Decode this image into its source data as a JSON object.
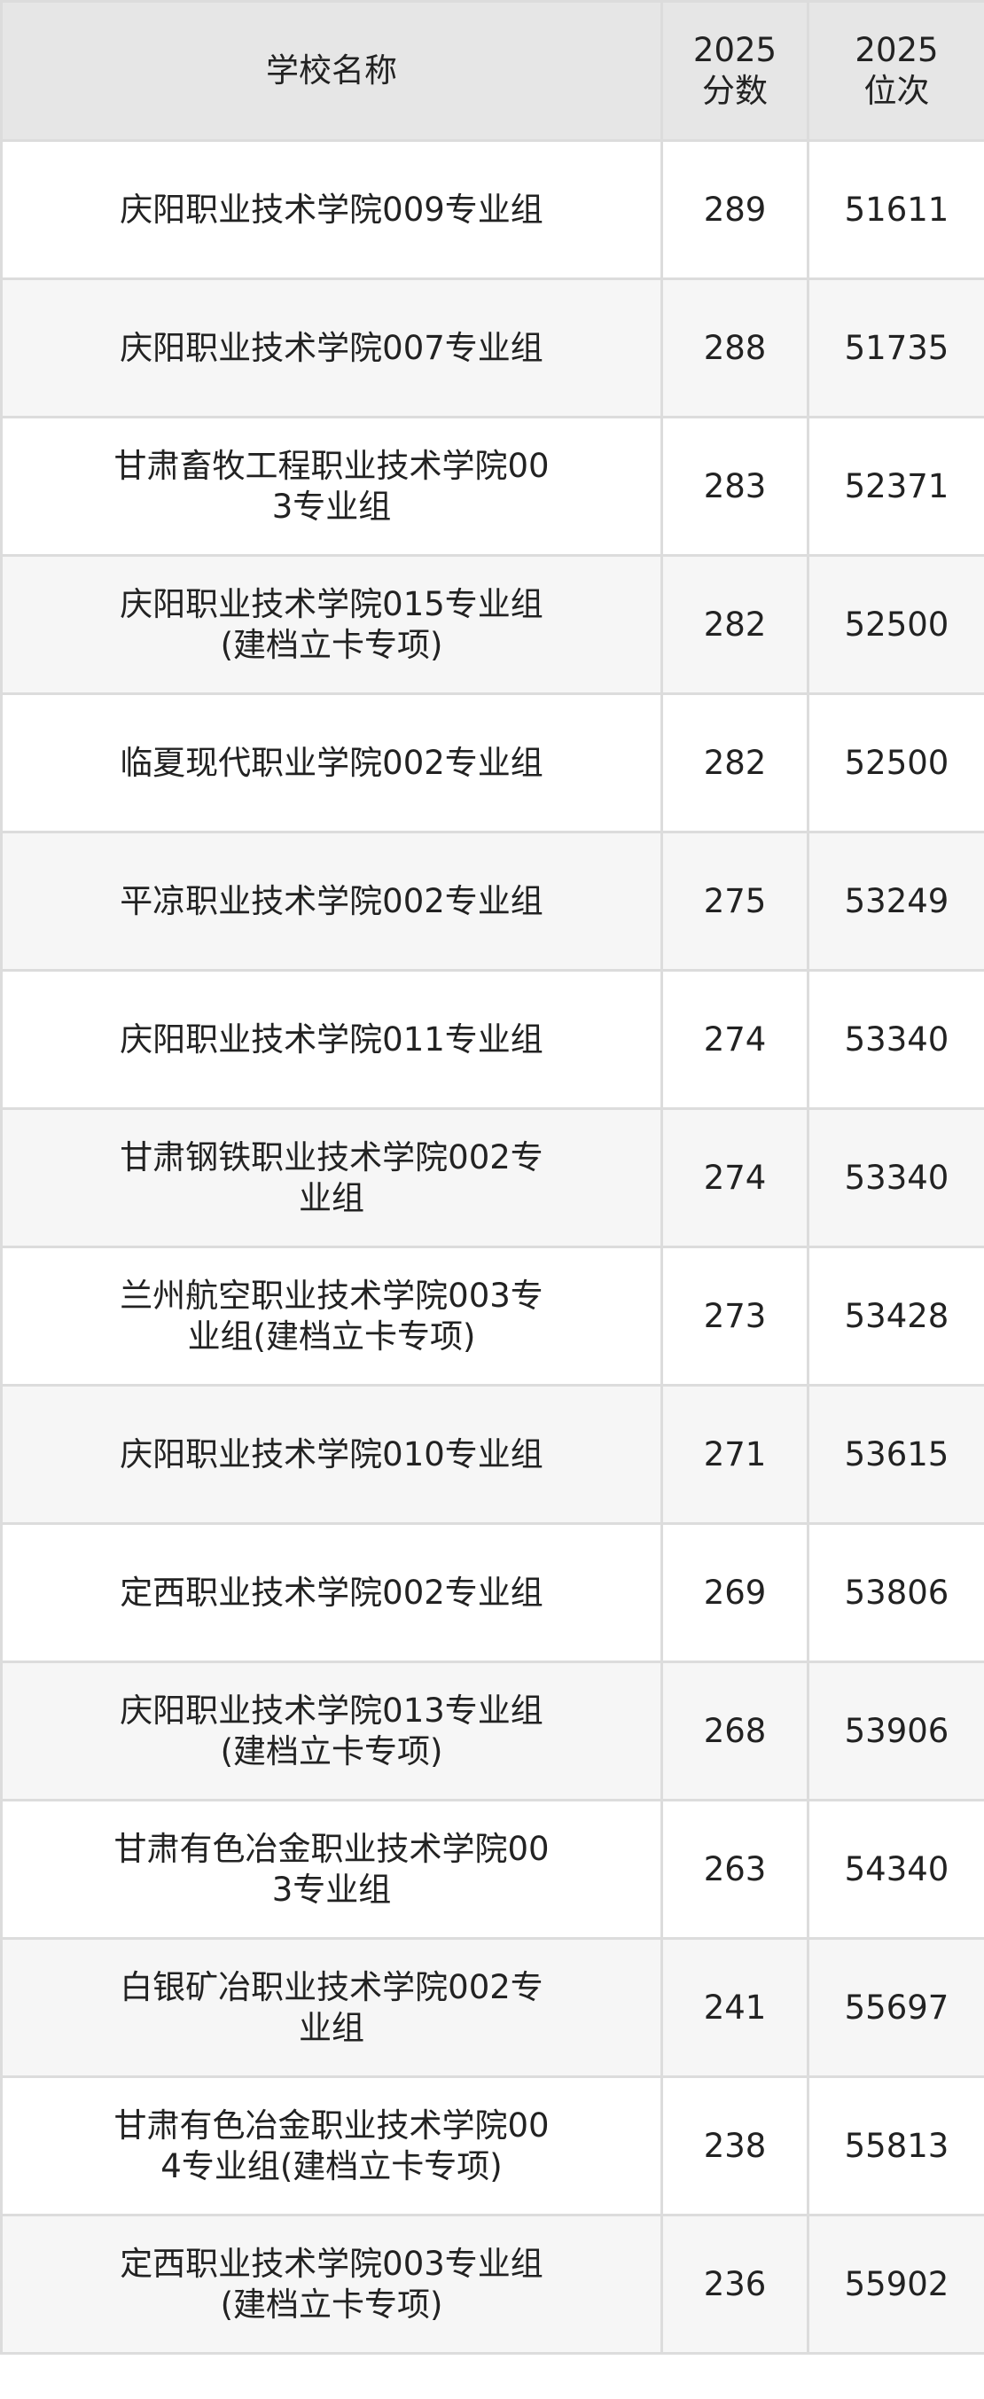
{
  "header": {
    "name": "学校名称",
    "score_year": "2025",
    "score_label": "分数",
    "rank_year": "2025",
    "rank_label": "位次"
  },
  "rows": [
    {
      "name": "庆阳职业技术学院009专业组",
      "score": "289",
      "rank": "51611"
    },
    {
      "name": "庆阳职业技术学院007专业组",
      "score": "288",
      "rank": "51735"
    },
    {
      "name": "甘肃畜牧工程职业技术学院003专业组",
      "score": "283",
      "rank": "52371"
    },
    {
      "name": "庆阳职业技术学院015专业组(建档立卡专项)",
      "score": "282",
      "rank": "52500"
    },
    {
      "name": "临夏现代职业学院002专业组",
      "score": "282",
      "rank": "52500"
    },
    {
      "name": "平凉职业技术学院002专业组",
      "score": "275",
      "rank": "53249"
    },
    {
      "name": "庆阳职业技术学院011专业组",
      "score": "274",
      "rank": "53340"
    },
    {
      "name": "甘肃钢铁职业技术学院002专业组",
      "score": "274",
      "rank": "53340"
    },
    {
      "name": "兰州航空职业技术学院003专业组(建档立卡专项)",
      "score": "273",
      "rank": "53428"
    },
    {
      "name": "庆阳职业技术学院010专业组",
      "score": "271",
      "rank": "53615"
    },
    {
      "name": "定西职业技术学院002专业组",
      "score": "269",
      "rank": "53806"
    },
    {
      "name": "庆阳职业技术学院013专业组(建档立卡专项)",
      "score": "268",
      "rank": "53906"
    },
    {
      "name": "甘肃有色冶金职业技术学院003专业组",
      "score": "263",
      "rank": "54340"
    },
    {
      "name": "白银矿冶职业技术学院002专业组",
      "score": "241",
      "rank": "55697"
    },
    {
      "name": "甘肃有色冶金职业技术学院004专业组(建档立卡专项)",
      "score": "238",
      "rank": "55813"
    },
    {
      "name": "定西职业技术学院003专业组(建档立卡专项)",
      "score": "236",
      "rank": "55902"
    }
  ]
}
